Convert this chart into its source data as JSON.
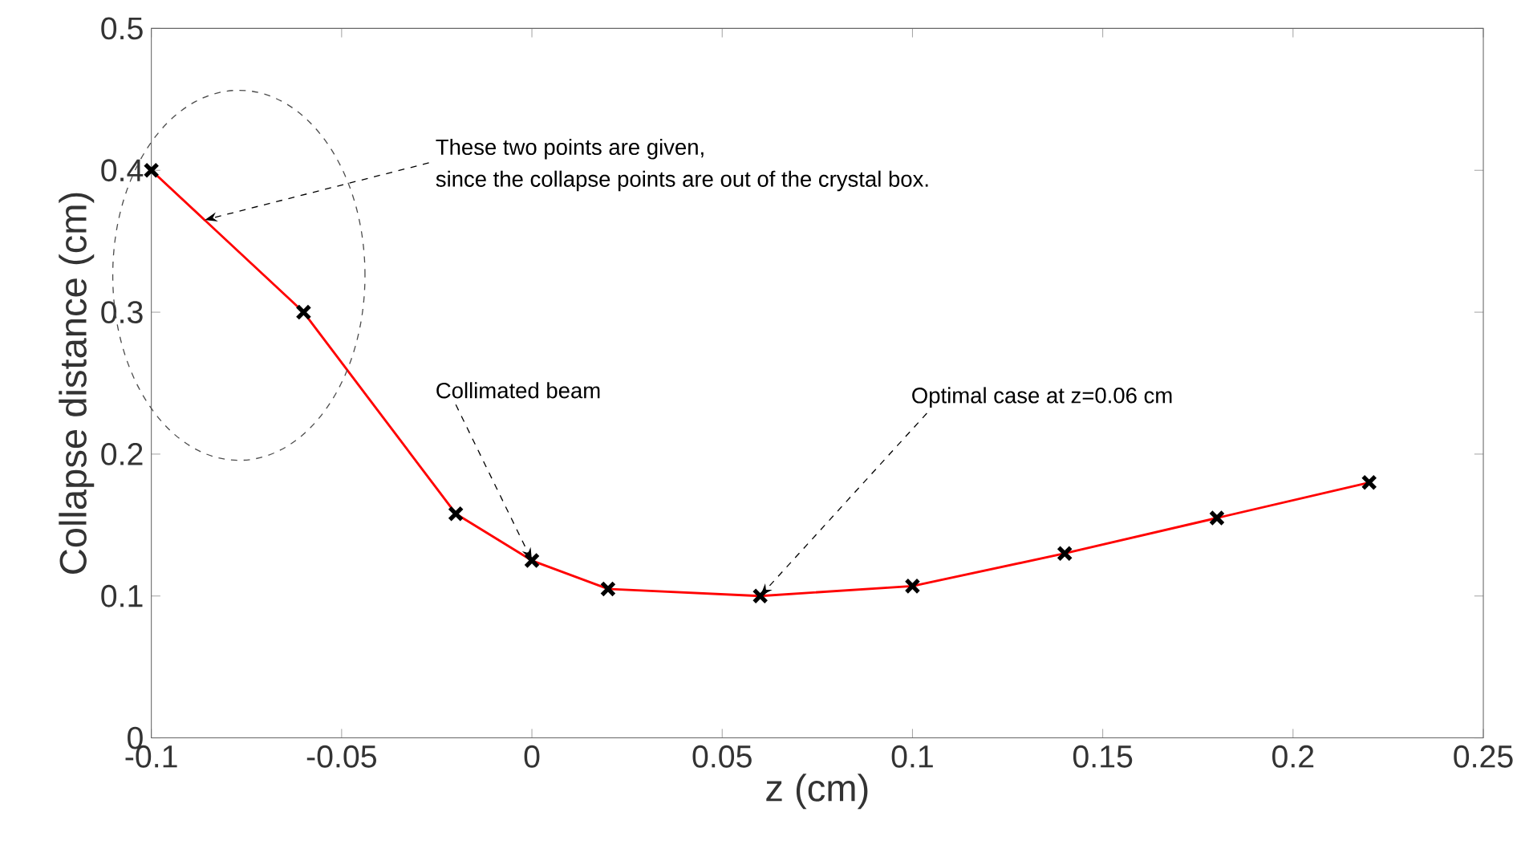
{
  "chart_data": {
    "type": "line",
    "xlabel": "z (cm)",
    "ylabel": "Collapse distance (cm)",
    "x": [
      -0.1,
      -0.06,
      -0.02,
      0,
      0.02,
      0.06,
      0.1,
      0.14,
      0.18,
      0.22
    ],
    "series": [
      {
        "color": "#ff0000",
        "values": [
          0.4,
          0.3,
          0.158,
          0.125,
          0.105,
          0.1,
          0.107,
          0.13,
          0.155,
          0.18
        ]
      }
    ],
    "xlim": [
      -0.1,
      0.25
    ],
    "xticks": [
      -0.1,
      -0.05,
      0,
      0.05,
      0.1,
      0.15,
      0.2,
      0.25
    ],
    "ylim": [
      0,
      0.5
    ],
    "yticks": [
      0,
      0.1,
      0.2,
      0.3,
      0.4,
      0.5
    ],
    "marker": "cross",
    "line_style": "solid",
    "grid": false,
    "annotations": [
      {
        "text": "These two points are given,",
        "x": -0.086,
        "y": 0.365
      },
      "since the collapse points are out of the crystal box.",
      {
        "text": "Collimated beam",
        "x": 0,
        "y": 0.125
      },
      {
        "text": "Optimal case at z=0.06 cm",
        "x": 0.06,
        "y": 0.1
      }
    ]
  }
}
